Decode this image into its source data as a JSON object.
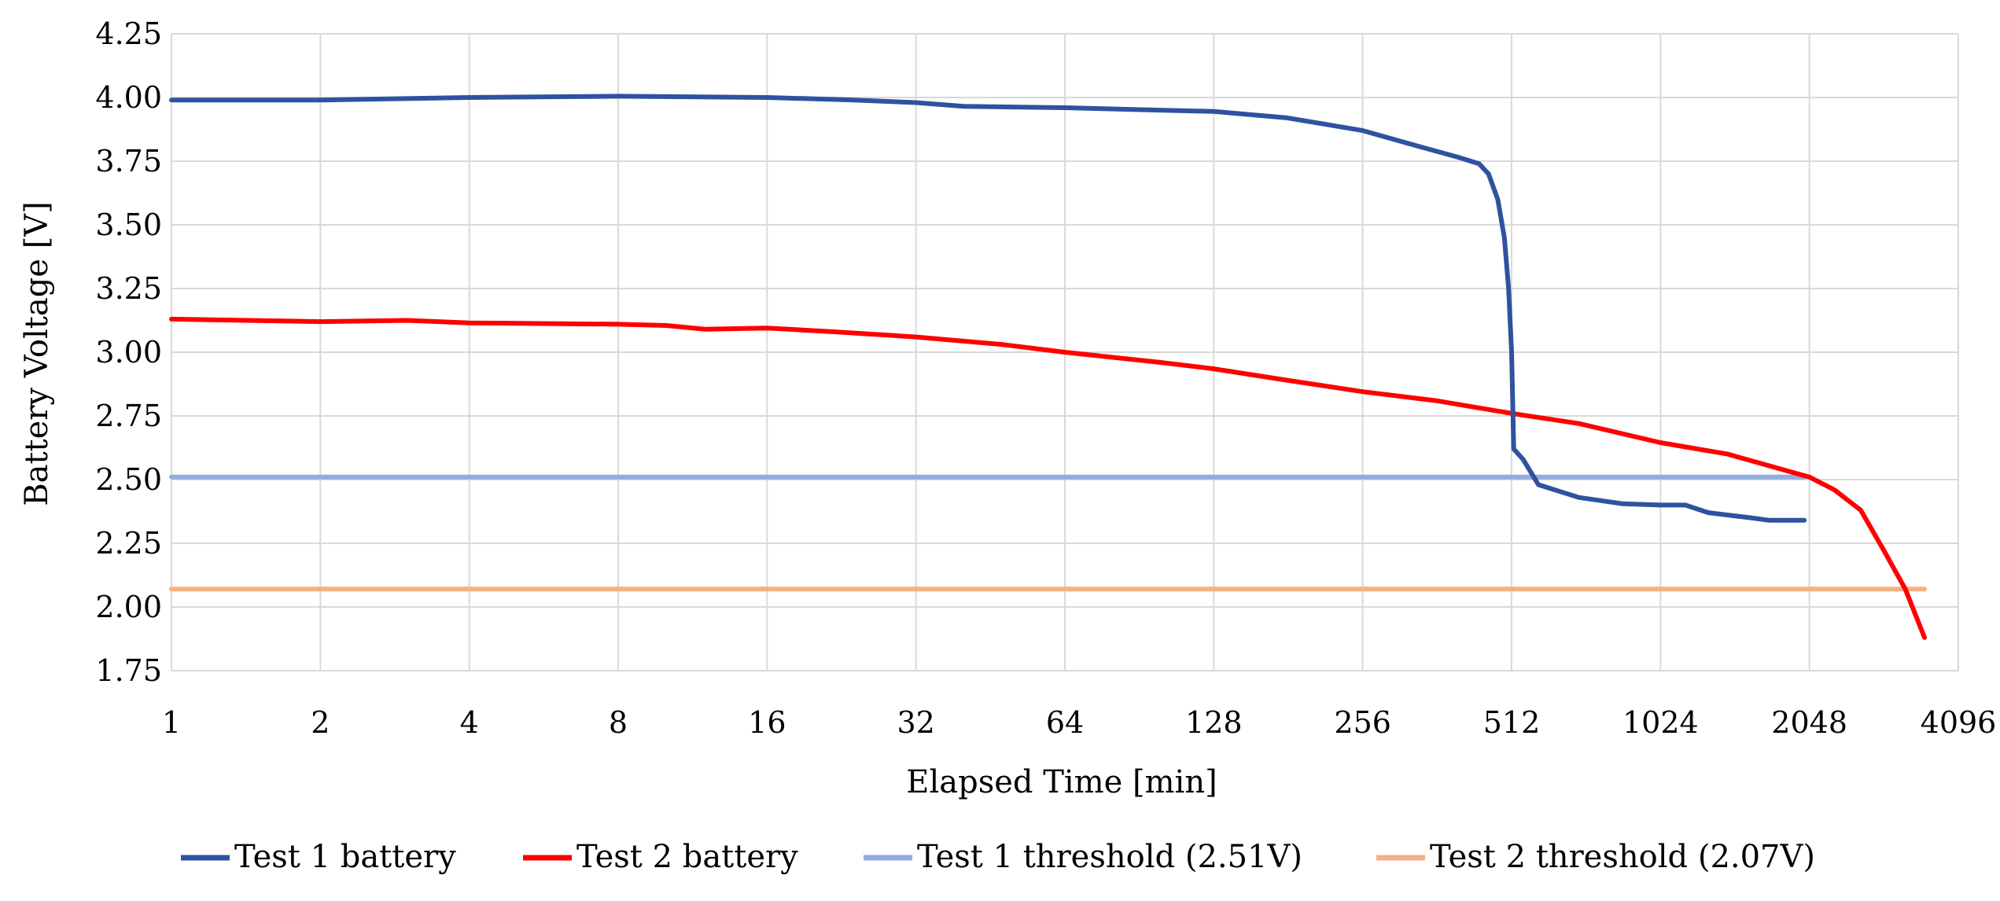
{
  "chart_data": {
    "type": "line",
    "title": "",
    "xlabel": "Elapsed Time [min]",
    "ylabel": "Battery Voltage [V]",
    "x_scale": "log2",
    "xlim": [
      1,
      4096
    ],
    "ylim": [
      1.75,
      4.25
    ],
    "x_ticks": [
      "1",
      "2",
      "4",
      "8",
      "16",
      "32",
      "64",
      "128",
      "256",
      "512",
      "1024",
      "2048",
      "4096"
    ],
    "x_tick_values": [
      1,
      2,
      4,
      8,
      16,
      32,
      64,
      128,
      256,
      512,
      1024,
      2048,
      4096
    ],
    "y_ticks": [
      "1.75",
      "2.00",
      "2.25",
      "2.50",
      "2.75",
      "3.00",
      "3.25",
      "3.50",
      "3.75",
      "4.00",
      "4.25"
    ],
    "y_tick_values": [
      1.75,
      2.0,
      2.25,
      2.5,
      2.75,
      3.0,
      3.25,
      3.5,
      3.75,
      4.0,
      4.25
    ],
    "grid": true,
    "legend_position": "bottom",
    "series": [
      {
        "name": "Test 1 battery",
        "color": "#2f52a0",
        "points": [
          [
            1,
            3.99
          ],
          [
            2,
            3.99
          ],
          [
            4,
            4.0
          ],
          [
            8,
            4.005
          ],
          [
            16,
            4.0
          ],
          [
            24,
            3.99
          ],
          [
            32,
            3.98
          ],
          [
            40,
            3.965
          ],
          [
            64,
            3.96
          ],
          [
            128,
            3.945
          ],
          [
            180,
            3.92
          ],
          [
            256,
            3.87
          ],
          [
            330,
            3.81
          ],
          [
            400,
            3.765
          ],
          [
            440,
            3.74
          ],
          [
            460,
            3.7
          ],
          [
            480,
            3.6
          ],
          [
            495,
            3.45
          ],
          [
            505,
            3.25
          ],
          [
            512,
            3.0
          ],
          [
            517,
            2.62
          ],
          [
            540,
            2.58
          ],
          [
            580,
            2.48
          ],
          [
            700,
            2.43
          ],
          [
            860,
            2.405
          ],
          [
            1024,
            2.4
          ],
          [
            1150,
            2.4
          ],
          [
            1280,
            2.37
          ],
          [
            1560,
            2.35
          ],
          [
            1700,
            2.34
          ],
          [
            2000,
            2.34
          ]
        ]
      },
      {
        "name": "Test 2 battery",
        "color": "#ff0000",
        "points": [
          [
            1,
            3.13
          ],
          [
            2,
            3.12
          ],
          [
            3,
            3.125
          ],
          [
            4,
            3.115
          ],
          [
            8,
            3.11
          ],
          [
            10,
            3.105
          ],
          [
            12,
            3.09
          ],
          [
            16,
            3.095
          ],
          [
            22,
            3.08
          ],
          [
            32,
            3.06
          ],
          [
            48,
            3.03
          ],
          [
            64,
            3.0
          ],
          [
            100,
            2.96
          ],
          [
            128,
            2.935
          ],
          [
            180,
            2.89
          ],
          [
            256,
            2.845
          ],
          [
            360,
            2.81
          ],
          [
            512,
            2.76
          ],
          [
            700,
            2.72
          ],
          [
            1024,
            2.645
          ],
          [
            1400,
            2.6
          ],
          [
            2048,
            2.51
          ],
          [
            2300,
            2.46
          ],
          [
            2600,
            2.38
          ],
          [
            2900,
            2.22
          ],
          [
            3200,
            2.07
          ],
          [
            3500,
            1.88
          ]
        ]
      },
      {
        "name": "Test 1 threshold (2.51V)",
        "color": "#8fadde",
        "points": [
          [
            1,
            2.51
          ],
          [
            2000,
            2.51
          ]
        ]
      },
      {
        "name": "Test 2 threshold (2.07V)",
        "color": "#f4b183",
        "points": [
          [
            1,
            2.07
          ],
          [
            3500,
            2.07
          ]
        ]
      }
    ]
  }
}
